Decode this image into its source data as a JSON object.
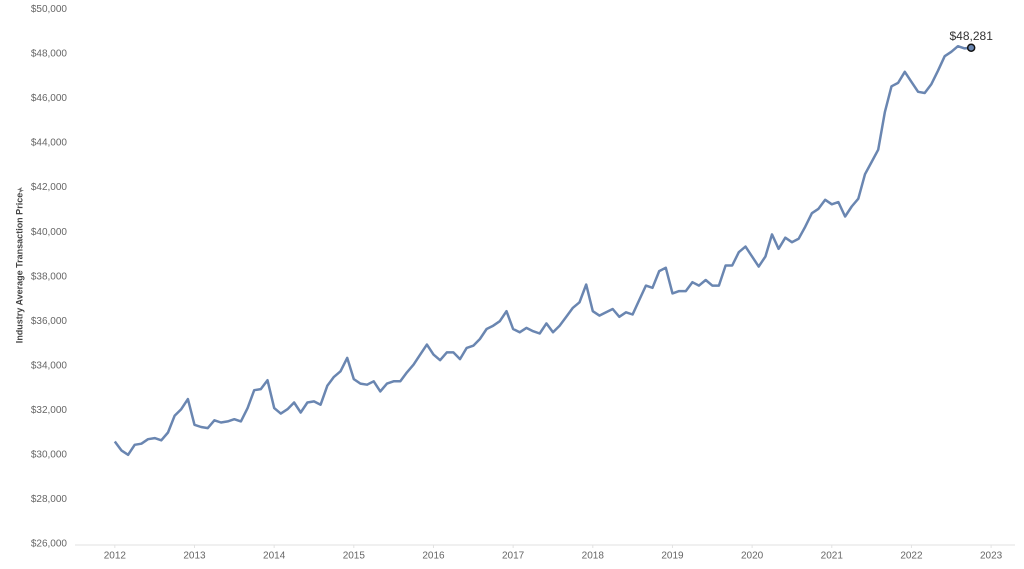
{
  "chart_data": {
    "type": "line",
    "y_label": "Industry Average Transaction Price",
    "x": [
      2012,
      2012.083,
      2012.167,
      2012.25,
      2012.333,
      2012.417,
      2012.5,
      2012.583,
      2012.667,
      2012.75,
      2012.833,
      2012.917,
      2013,
      2013.083,
      2013.167,
      2013.25,
      2013.333,
      2013.417,
      2013.5,
      2013.583,
      2013.667,
      2013.75,
      2013.833,
      2013.917,
      2014,
      2014.083,
      2014.167,
      2014.25,
      2014.333,
      2014.417,
      2014.5,
      2014.583,
      2014.667,
      2014.75,
      2014.833,
      2014.917,
      2015,
      2015.083,
      2015.167,
      2015.25,
      2015.333,
      2015.417,
      2015.5,
      2015.583,
      2015.667,
      2015.75,
      2015.833,
      2015.917,
      2016,
      2016.083,
      2016.167,
      2016.25,
      2016.333,
      2016.417,
      2016.5,
      2016.583,
      2016.667,
      2016.75,
      2016.833,
      2016.917,
      2017,
      2017.083,
      2017.167,
      2017.25,
      2017.333,
      2017.417,
      2017.5,
      2017.583,
      2017.667,
      2017.75,
      2017.833,
      2017.917,
      2018,
      2018.083,
      2018.167,
      2018.25,
      2018.333,
      2018.417,
      2018.5,
      2018.583,
      2018.667,
      2018.75,
      2018.833,
      2018.917,
      2019,
      2019.083,
      2019.167,
      2019.25,
      2019.333,
      2019.417,
      2019.5,
      2019.583,
      2019.667,
      2019.75,
      2019.833,
      2019.917,
      2020,
      2020.083,
      2020.167,
      2020.25,
      2020.333,
      2020.417,
      2020.5,
      2020.583,
      2020.667,
      2020.75,
      2020.833,
      2020.917,
      2021,
      2021.083,
      2021.167,
      2021.25,
      2021.333,
      2021.417,
      2021.5,
      2021.583,
      2021.667,
      2021.75,
      2021.833,
      2021.917,
      2022,
      2022.083,
      2022.167,
      2022.25,
      2022.333,
      2022.417,
      2022.5,
      2022.583,
      2022.667,
      2022.75
    ],
    "series": [
      {
        "name": "Industry Average Transaction Price",
        "color": "#6a86b1",
        "values": [
          30600,
          30200,
          30000,
          30450,
          30500,
          30700,
          30750,
          30650,
          31000,
          31750,
          32050,
          32500,
          31350,
          31250,
          31200,
          31550,
          31450,
          31500,
          31600,
          31500,
          32100,
          32900,
          32950,
          33350,
          32100,
          31850,
          32050,
          32350,
          31900,
          32350,
          32400,
          32250,
          33100,
          33500,
          33750,
          34350,
          33400,
          33200,
          33150,
          33300,
          32850,
          33200,
          33300,
          33300,
          33700,
          34050,
          34500,
          34950,
          34500,
          34250,
          34600,
          34600,
          34300,
          34800,
          34900,
          35200,
          35650,
          35800,
          36000,
          36450,
          35650,
          35500,
          35700,
          35550,
          35450,
          35900,
          35500,
          35800,
          36200,
          36600,
          36850,
          37650,
          36450,
          36250,
          36400,
          36550,
          36200,
          36400,
          36300,
          36950,
          37600,
          37500,
          38250,
          38400,
          37250,
          37350,
          37350,
          37750,
          37600,
          37850,
          37600,
          37600,
          38500,
          38500,
          39100,
          39350,
          38900,
          38450,
          38900,
          39900,
          39250,
          39750,
          39550,
          39700,
          40250,
          40850,
          41050,
          41450,
          41250,
          41350,
          40700,
          41150,
          41500,
          42600,
          43150,
          43700,
          45400,
          46550,
          46700,
          47200,
          46750,
          46300,
          46250,
          46650,
          47250,
          47900,
          48100,
          48350,
          48250,
          48281
        ],
        "value_labels": [
          null,
          null,
          null,
          null,
          null,
          null,
          null,
          null,
          null,
          null,
          null,
          null,
          null,
          null,
          null,
          null,
          null,
          null,
          null,
          null,
          null,
          null,
          null,
          null,
          null,
          null,
          null,
          null,
          null,
          null,
          null,
          null,
          null,
          null,
          null,
          null,
          null,
          null,
          null,
          null,
          null,
          null,
          null,
          null,
          null,
          null,
          null,
          null,
          null,
          null,
          null,
          null,
          null,
          null,
          null,
          null,
          null,
          null,
          null,
          null,
          null,
          null,
          null,
          null,
          null,
          null,
          null,
          null,
          null,
          null,
          null,
          null,
          null,
          null,
          null,
          null,
          null,
          null,
          null,
          null,
          null,
          null,
          null,
          null,
          null,
          null,
          null,
          null,
          null,
          null,
          null,
          null,
          null,
          null,
          null,
          null,
          null,
          null,
          null,
          null,
          null,
          null,
          null,
          null,
          null,
          null,
          null,
          null,
          null,
          null,
          null,
          null,
          null,
          null,
          null,
          null,
          null,
          null,
          null,
          null,
          null,
          null,
          null,
          null,
          null,
          null,
          null,
          null,
          null,
          "$48,281"
        ]
      }
    ],
    "xlim": [
      2011.5,
      2023.3
    ],
    "xticks": [
      2012,
      2013,
      2014,
      2015,
      2016,
      2017,
      2018,
      2019,
      2020,
      2021,
      2022,
      2023
    ],
    "ylim": [
      25950,
      50200
    ],
    "yticks": [
      {
        "value": 26000,
        "label": "$26,000"
      },
      {
        "value": 28000,
        "label": "$28,000"
      },
      {
        "value": 30000,
        "label": "$30,000"
      },
      {
        "value": 32000,
        "label": "$32,000"
      },
      {
        "value": 34000,
        "label": "$34,000"
      },
      {
        "value": 36000,
        "label": "$36,000"
      },
      {
        "value": 38000,
        "label": "$38,000"
      },
      {
        "value": 40000,
        "label": "$40,000"
      },
      {
        "value": 42000,
        "label": "$42,000"
      },
      {
        "value": 44000,
        "label": "$44,000"
      },
      {
        "value": 46000,
        "label": "$46,000"
      },
      {
        "value": 48000,
        "label": "$48,000"
      },
      {
        "value": 50000,
        "label": "$50,000"
      }
    ],
    "grid": false
  }
}
